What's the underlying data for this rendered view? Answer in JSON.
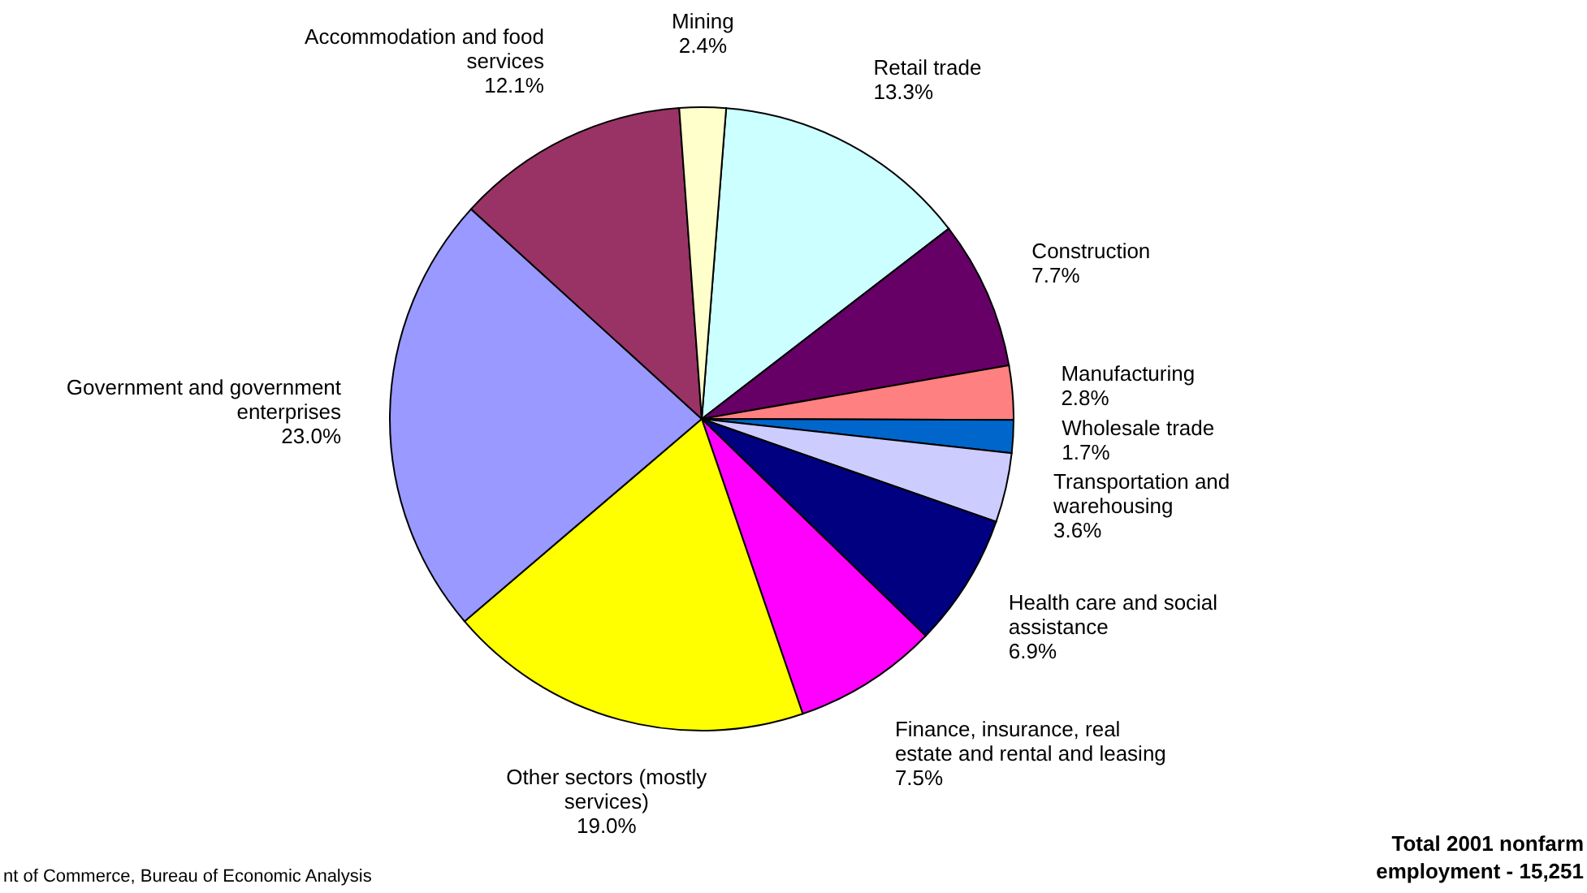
{
  "chart_data": {
    "type": "pie",
    "categories": [
      "Retail trade",
      "Construction",
      "Manufacturing",
      "Wholesale trade",
      "Transportation and\nwarehousing",
      "Health care and social\nassistance",
      "Finance, insurance, real\nestate and rental and leasing",
      "Other sectors (mostly\nservices)",
      "Government and government\nenterprises",
      "Accommodation and food\nservices",
      "Mining"
    ],
    "values": [
      13.3,
      7.7,
      2.8,
      1.7,
      3.6,
      6.9,
      7.5,
      19.0,
      23.0,
      12.1,
      2.4
    ],
    "colors": [
      "#ccffff",
      "#660066",
      "#ff8080",
      "#0066cc",
      "#ccccff",
      "#000080",
      "#ff00ff",
      "#ffff00",
      "#9999ff",
      "#993366",
      "#ffffcc"
    ],
    "value_labels": [
      "13.3%",
      "7.7%",
      "2.8%",
      "1.7%",
      "3.6%",
      "6.9%",
      "7.5%",
      "19.0%",
      "23.0%",
      "12.1%",
      "2.4%"
    ],
    "annotations": [
      "nt of Commerce, Bureau of Economic Analysis",
      "Total 2001 nonfarm\nemployment  - 15,251"
    ]
  }
}
